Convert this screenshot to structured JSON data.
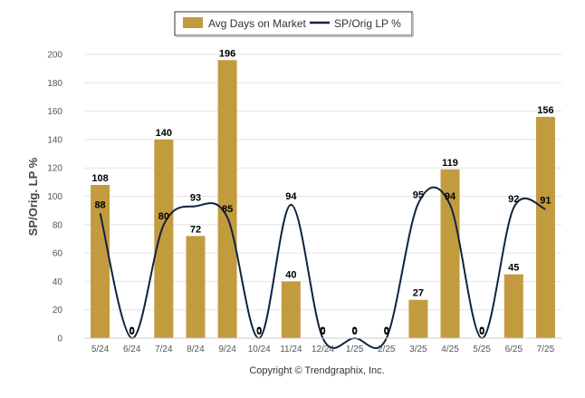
{
  "chart_data": {
    "type": "bar",
    "categories": [
      "5/24",
      "6/24",
      "7/24",
      "8/24",
      "9/24",
      "10/24",
      "11/24",
      "12/24",
      "1/25",
      "2/25",
      "3/25",
      "4/25",
      "5/25",
      "6/25",
      "7/25"
    ],
    "series": [
      {
        "name": "Avg Days on Market",
        "type": "bar",
        "color": "#c39b3f",
        "values": [
          108,
          0,
          140,
          72,
          196,
          0,
          40,
          0,
          0,
          0,
          27,
          119,
          0,
          45,
          156
        ]
      },
      {
        "name": "SP/Orig LP %",
        "type": "line",
        "color": "#0d2440",
        "values": [
          88,
          0,
          80,
          93,
          85,
          0,
          94,
          0,
          0,
          0,
          95,
          94,
          0,
          92,
          91
        ]
      }
    ],
    "ylabel": "SP/Orig. LP %",
    "ylim": [
      0,
      200
    ],
    "yticks": [
      0,
      20,
      40,
      60,
      80,
      100,
      120,
      140,
      160,
      180,
      200
    ],
    "grid": true,
    "legend": "top-center"
  },
  "footer": "Copyright © Trendgraphix, Inc."
}
